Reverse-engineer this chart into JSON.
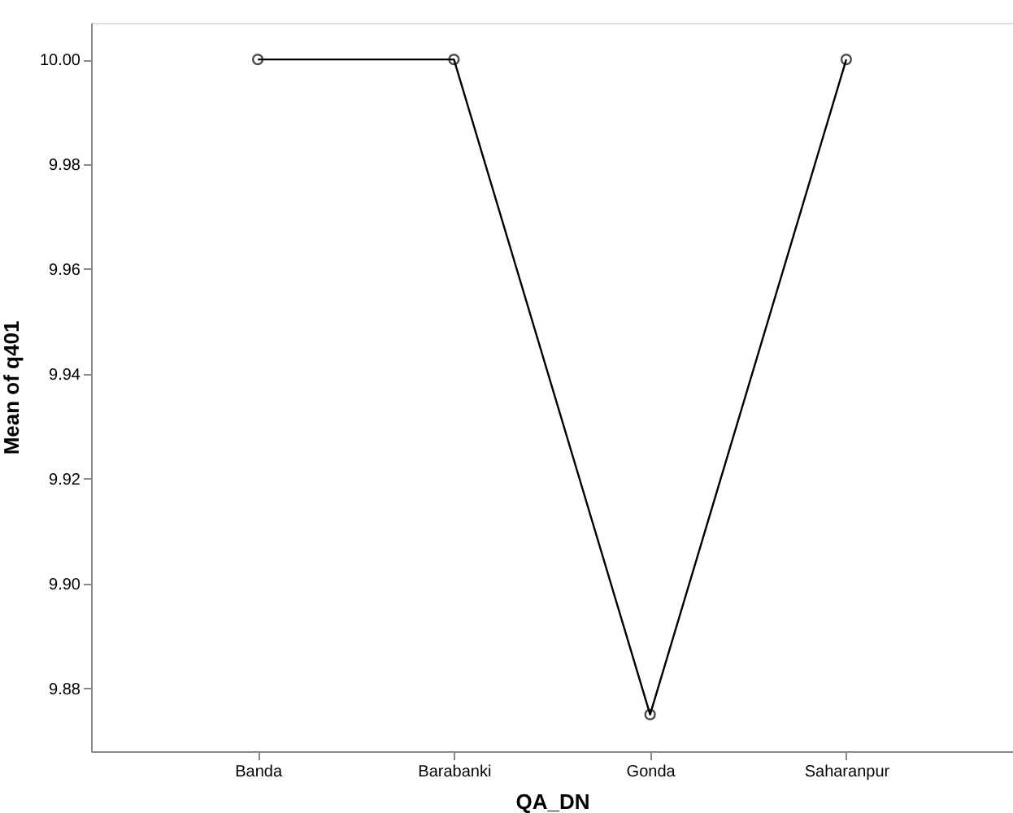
{
  "chart_data": {
    "type": "line",
    "xlabel": "QA_DN",
    "ylabel": "Mean of q401",
    "categories": [
      "Banda",
      "Barabanki",
      "Gonda",
      "Saharanpur"
    ],
    "series": [
      {
        "color": "#000000",
        "values": [
          10.0,
          10.0,
          9.875,
          10.0
        ]
      }
    ],
    "ylim": [
      9.868,
      10.007
    ],
    "yticks": [
      {
        "value": 9.88,
        "label": "9.88"
      },
      {
        "value": 9.9,
        "label": "9.90"
      },
      {
        "value": 9.92,
        "label": "9.92"
      },
      {
        "value": 9.94,
        "label": "9.94"
      },
      {
        "value": 9.96,
        "label": "9.96"
      },
      {
        "value": 9.98,
        "label": "9.98"
      },
      {
        "value": 10.0,
        "label": "10.00"
      }
    ],
    "marker": "circle",
    "line_style": "solid",
    "grid": false
  }
}
